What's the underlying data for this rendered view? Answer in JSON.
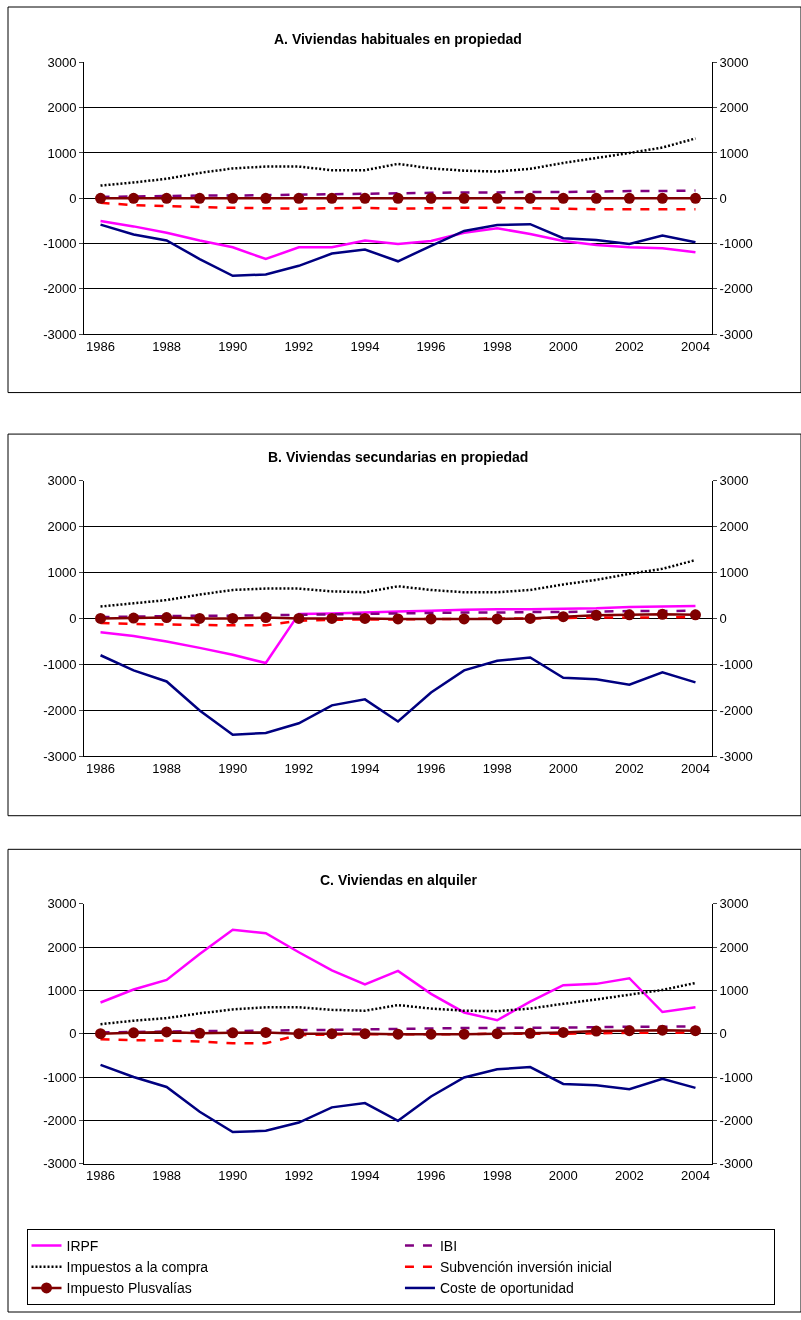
{
  "chart_data": [
    {
      "type": "line",
      "title": "A. Viviendas habituales en propiedad",
      "x": [
        1986,
        1987,
        1988,
        1989,
        1990,
        1991,
        1992,
        1993,
        1994,
        1995,
        1996,
        1997,
        1998,
        1999,
        2000,
        2001,
        2002,
        2003,
        2004
      ],
      "xlim": [
        1985.5,
        2004.5
      ],
      "xticks": [
        1986,
        1988,
        1990,
        1992,
        1994,
        1996,
        1998,
        2000,
        2002,
        2004
      ],
      "ylim": [
        -3000,
        3000
      ],
      "yticks": [
        -3000,
        -2000,
        -1000,
        0,
        1000,
        2000,
        3000
      ],
      "y2lim": [
        -3000,
        3000
      ],
      "y2ticks": [
        -3000,
        -2000,
        -1000,
        0,
        1000,
        2000,
        3000
      ],
      "grid": "y",
      "legend": false,
      "series": [
        {
          "color": "#ff00ff",
          "line_style": "solid",
          "values": [
            -500,
            -620,
            -760,
            -930,
            -1080,
            -1340,
            -1080,
            -1080,
            -930,
            -1010,
            -940,
            -760,
            -660,
            -790,
            -940,
            -1030,
            -1080,
            -1100,
            -1190
          ]
        },
        {
          "color": "#800080",
          "line_style": "dashed",
          "values": [
            30,
            40,
            50,
            60,
            60,
            70,
            80,
            90,
            100,
            110,
            120,
            130,
            130,
            140,
            140,
            150,
            160,
            160,
            170
          ]
        },
        {
          "color": "#000000",
          "line_style": "dotted",
          "values": [
            280,
            350,
            430,
            560,
            660,
            700,
            700,
            620,
            620,
            760,
            660,
            610,
            590,
            650,
            780,
            890,
            1000,
            1120,
            1320
          ]
        },
        {
          "color": "#ff0000",
          "line_style": "dashed",
          "values": [
            -100,
            -150,
            -170,
            -190,
            -210,
            -220,
            -230,
            -220,
            -210,
            -230,
            -220,
            -210,
            -210,
            -220,
            -230,
            -240,
            -240,
            -240,
            -240
          ]
        },
        {
          "color": "#800000",
          "line_style": "solid",
          "marker": "circle",
          "values": [
            0,
            0,
            0,
            0,
            0,
            0,
            0,
            0,
            0,
            0,
            0,
            0,
            0,
            0,
            0,
            0,
            0,
            0,
            0
          ]
        },
        {
          "color": "#000080",
          "line_style": "solid",
          "values": [
            -580,
            -800,
            -930,
            -1340,
            -1710,
            -1680,
            -1490,
            -1220,
            -1130,
            -1390,
            -1050,
            -720,
            -590,
            -570,
            -880,
            -920,
            -1010,
            -820,
            -970
          ]
        }
      ]
    },
    {
      "type": "line",
      "title": "B. Viviendas secundarias en propiedad",
      "x": [
        1986,
        1987,
        1988,
        1989,
        1990,
        1991,
        1992,
        1993,
        1994,
        1995,
        1996,
        1997,
        1998,
        1999,
        2000,
        2001,
        2002,
        2003,
        2004
      ],
      "xlim": [
        1985.5,
        2004.5
      ],
      "xticks": [
        1986,
        1988,
        1990,
        1992,
        1994,
        1996,
        1998,
        2000,
        2002,
        2004
      ],
      "ylim": [
        -3000,
        3000
      ],
      "yticks": [
        -3000,
        -2000,
        -1000,
        0,
        1000,
        2000,
        3000
      ],
      "y2lim": [
        -3000,
        3000
      ],
      "y2ticks": [
        -3000,
        -2000,
        -1000,
        0,
        1000,
        2000,
        3000
      ],
      "grid": "y",
      "legend": false,
      "series": [
        {
          "color": "#ff00ff",
          "line_style": "solid",
          "values": [
            -300,
            -380,
            -500,
            -640,
            -790,
            -970,
            100,
            110,
            130,
            150,
            170,
            190,
            200,
            200,
            210,
            220,
            250,
            260,
            270
          ]
        },
        {
          "color": "#800080",
          "line_style": "dashed",
          "values": [
            30,
            40,
            50,
            60,
            60,
            70,
            80,
            90,
            100,
            110,
            120,
            130,
            130,
            140,
            140,
            150,
            160,
            160,
            170
          ]
        },
        {
          "color": "#000000",
          "line_style": "dotted",
          "values": [
            260,
            330,
            400,
            520,
            620,
            650,
            650,
            590,
            570,
            700,
            620,
            570,
            570,
            620,
            740,
            840,
            970,
            1080,
            1270
          ]
        },
        {
          "color": "#ff0000",
          "line_style": "dashed",
          "values": [
            -100,
            -120,
            -130,
            -140,
            -150,
            -150,
            -50,
            -30,
            -20,
            -20,
            -10,
            -10,
            0,
            0,
            10,
            20,
            20,
            20,
            30
          ]
        },
        {
          "color": "#800000",
          "line_style": "solid",
          "marker": "circle",
          "values": [
            0,
            10,
            20,
            0,
            0,
            20,
            0,
            0,
            0,
            -10,
            -10,
            -10,
            -10,
            0,
            40,
            70,
            80,
            90,
            80
          ]
        },
        {
          "color": "#000080",
          "line_style": "solid",
          "values": [
            -800,
            -1130,
            -1370,
            -2000,
            -2530,
            -2490,
            -2280,
            -1890,
            -1760,
            -2240,
            -1610,
            -1130,
            -920,
            -850,
            -1290,
            -1320,
            -1440,
            -1170,
            -1390
          ]
        }
      ]
    },
    {
      "type": "line",
      "title": "C. Viviendas en alquiler",
      "x": [
        1986,
        1987,
        1988,
        1989,
        1990,
        1991,
        1992,
        1993,
        1994,
        1995,
        1996,
        1997,
        1998,
        1999,
        2000,
        2001,
        2002,
        2003,
        2004
      ],
      "xlim": [
        1985.5,
        2004.5
      ],
      "xticks": [
        1986,
        1988,
        1990,
        1992,
        1994,
        1996,
        1998,
        2000,
        2002,
        2004
      ],
      "ylim": [
        -3000,
        3000
      ],
      "yticks": [
        -3000,
        -2000,
        -1000,
        0,
        1000,
        2000,
        3000
      ],
      "y2lim": [
        -3000,
        3000
      ],
      "y2ticks": [
        -3000,
        -2000,
        -1000,
        0,
        1000,
        2000,
        3000
      ],
      "grid": "y",
      "legend": "bottom",
      "series": [
        {
          "name": "IRPF",
          "color": "#ff00ff",
          "line_style": "solid",
          "values": [
            720,
            1020,
            1240,
            1840,
            2400,
            2320,
            1880,
            1460,
            1140,
            1450,
            920,
            490,
            310,
            740,
            1120,
            1150,
            1280,
            500,
            610
          ]
        },
        {
          "name": "IBI",
          "color": "#800080",
          "line_style": "dashed",
          "values": [
            30,
            40,
            50,
            60,
            60,
            70,
            80,
            90,
            100,
            110,
            120,
            130,
            130,
            140,
            140,
            150,
            160,
            160,
            170
          ]
        },
        {
          "name": "Impuestos a la compra",
          "color": "#000000",
          "line_style": "dotted",
          "values": [
            220,
            300,
            360,
            470,
            560,
            610,
            610,
            550,
            530,
            660,
            580,
            530,
            520,
            580,
            690,
            790,
            900,
            1010,
            1170
          ]
        },
        {
          "name": "Subvención inversión inicial",
          "color": "#ff0000",
          "line_style": "dashed",
          "values": [
            -130,
            -150,
            -160,
            -180,
            -220,
            -220,
            -30,
            -20,
            -10,
            -10,
            -10,
            -10,
            0,
            0,
            0,
            10,
            20,
            20,
            30
          ]
        },
        {
          "name": "Impuesto Plusvalías",
          "color": "#800000",
          "line_style": "solid",
          "marker": "circle",
          "values": [
            0,
            20,
            40,
            10,
            20,
            30,
            0,
            0,
            0,
            -10,
            -10,
            -10,
            0,
            10,
            30,
            60,
            70,
            80,
            70
          ]
        },
        {
          "name": "Coste de oportunidad",
          "color": "#000080",
          "line_style": "solid",
          "values": [
            -720,
            -1000,
            -1230,
            -1800,
            -2270,
            -2240,
            -2050,
            -1700,
            -1600,
            -2010,
            -1450,
            -1010,
            -820,
            -770,
            -1160,
            -1190,
            -1280,
            -1040,
            -1250
          ]
        }
      ]
    }
  ]
}
